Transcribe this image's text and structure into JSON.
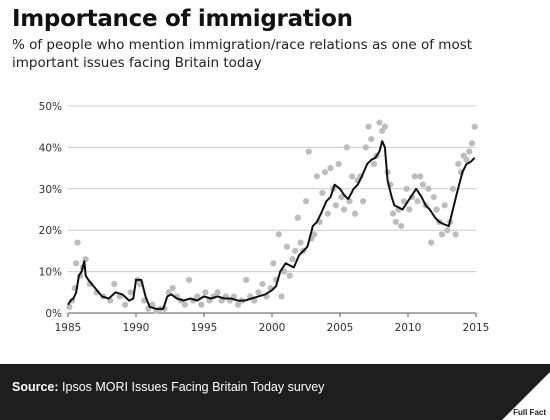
{
  "header": {
    "title": "Importance of immigration",
    "subtitle": "% of people who mention immigration/race relations as one of most important issues facing Britain today"
  },
  "footer": {
    "source_label": "Source:",
    "source_text": "Ipsos MORI Issues Facing Britain Today survey",
    "logo_text": "Full Fact"
  },
  "colors": {
    "line": "#111111",
    "points": "#bdbdbd",
    "grid": "#cccccc",
    "footer_bg": "#1e1e1e"
  },
  "chart_data": {
    "type": "line",
    "title": "Importance of immigration",
    "xlabel": "",
    "ylabel": "",
    "xlim": [
      1985,
      2015
    ],
    "ylim": [
      0,
      50
    ],
    "x_ticks": [
      1985,
      1990,
      1995,
      2000,
      2005,
      2010,
      2015
    ],
    "x_tick_labels": [
      "1985",
      "1990",
      "1995",
      "2000",
      "2005",
      "2010",
      "2015"
    ],
    "y_ticks": [
      0,
      10,
      20,
      30,
      40,
      50
    ],
    "y_tick_labels": [
      "0%",
      "10%",
      "20%",
      "30%",
      "40%",
      "50%"
    ],
    "grid": "horizontal",
    "legend": "none",
    "series": [
      {
        "kind": "line",
        "x": [
          1985.0,
          1985.2,
          1985.4,
          1985.6,
          1985.8,
          1986.0,
          1986.2,
          1986.3,
          1986.5,
          1987.0,
          1987.5,
          1988.0,
          1988.5,
          1989.0,
          1989.5,
          1989.8,
          1990.0,
          1990.4,
          1990.7,
          1991.0,
          1991.5,
          1992.0,
          1992.3,
          1992.6,
          1993.0,
          1993.5,
          1994.0,
          1994.5,
          1995.0,
          1995.5,
          1996.0,
          1996.5,
          1997.0,
          1997.5,
          1998.0,
          1998.5,
          1999.0,
          1999.5,
          2000.0,
          2000.3,
          2000.6,
          2001.0,
          2001.3,
          2001.6,
          2002.0,
          2002.3,
          2002.6,
          2003.0,
          2003.3,
          2003.6,
          2004.0,
          2004.3,
          2004.6,
          2005.0,
          2005.3,
          2005.6,
          2006.0,
          2006.3,
          2006.6,
          2007.0,
          2007.3,
          2007.6,
          2007.9,
          2008.1,
          2008.3,
          2008.5,
          2008.8,
          2009.0,
          2009.3,
          2009.6,
          2010.0,
          2010.3,
          2010.6,
          2011.0,
          2011.3,
          2011.6,
          2012.0,
          2012.3,
          2012.6,
          2013.0,
          2013.3,
          2013.6,
          2014.0,
          2014.3,
          2014.6,
          2014.9
        ],
        "y": [
          2,
          3,
          3.5,
          5,
          9,
          10,
          12.5,
          9,
          8,
          6,
          4,
          3.5,
          5,
          4.5,
          3,
          3.5,
          8,
          8,
          4,
          1.5,
          1,
          1,
          4,
          4.5,
          3.5,
          3,
          3.5,
          3,
          4,
          3.5,
          4,
          3.5,
          3.5,
          3,
          3,
          3.5,
          4,
          4.5,
          5.5,
          6.5,
          10,
          12,
          11.5,
          11,
          14,
          15,
          16,
          21,
          22,
          24,
          27,
          28,
          31,
          30,
          28.5,
          27.5,
          30,
          31,
          33,
          36,
          37,
          37.5,
          39,
          41.5,
          40,
          32,
          28,
          26,
          25.5,
          25,
          27,
          28.5,
          30,
          28,
          26,
          25,
          23,
          22,
          21.5,
          21,
          25,
          29,
          34,
          36,
          36.5,
          37.5
        ]
      },
      {
        "kind": "scatter",
        "x": [
          1985.1,
          1985.3,
          1985.5,
          1985.6,
          1985.7,
          1985.9,
          1986.1,
          1986.3,
          1986.6,
          1987.1,
          1987.6,
          1988.1,
          1988.4,
          1988.8,
          1989.2,
          1989.6,
          1990.1,
          1990.3,
          1990.6,
          1990.9,
          1991.2,
          1991.5,
          1991.8,
          1992.1,
          1992.4,
          1992.7,
          1993.0,
          1993.3,
          1993.6,
          1993.9,
          1994.2,
          1994.5,
          1994.8,
          1995.1,
          1995.4,
          1995.7,
          1996.0,
          1996.3,
          1996.6,
          1996.9,
          1997.2,
          1997.5,
          1997.8,
          1998.1,
          1998.4,
          1998.7,
          1999.0,
          1999.3,
          1999.6,
          1999.9,
          2000.1,
          2000.3,
          2000.5,
          2000.7,
          2000.9,
          2001.1,
          2001.3,
          2001.5,
          2001.7,
          2001.9,
          2002.1,
          2002.3,
          2002.5,
          2002.7,
          2002.9,
          2003.1,
          2003.3,
          2003.5,
          2003.7,
          2003.9,
          2004.1,
          2004.3,
          2004.5,
          2004.7,
          2004.9,
          2005.1,
          2005.3,
          2005.5,
          2005.7,
          2005.9,
          2006.1,
          2006.3,
          2006.5,
          2006.7,
          2006.9,
          2007.1,
          2007.3,
          2007.5,
          2007.7,
          2007.9,
          2008.1,
          2008.3,
          2008.5,
          2008.7,
          2008.9,
          2009.1,
          2009.3,
          2009.5,
          2009.7,
          2009.9,
          2010.1,
          2010.3,
          2010.5,
          2010.7,
          2010.9,
          2011.1,
          2011.3,
          2011.5,
          2011.7,
          2011.9,
          2012.1,
          2012.3,
          2012.5,
          2012.7,
          2012.9,
          2013.1,
          2013.3,
          2013.5,
          2013.7,
          2013.9,
          2014.1,
          2014.3,
          2014.5,
          2014.7,
          2014.9
        ],
        "y": [
          1.5,
          3,
          6,
          12,
          17,
          9,
          11,
          13,
          7,
          5,
          4,
          3,
          7,
          4,
          2,
          5,
          8,
          7,
          3,
          1,
          2,
          0.5,
          1,
          1,
          5,
          6,
          4,
          3,
          2,
          8,
          3,
          4,
          2,
          5,
          3,
          4,
          5,
          3,
          4,
          3,
          4,
          2,
          3,
          8,
          4,
          3,
          5,
          7,
          4,
          6,
          12,
          8,
          19,
          4,
          10,
          16,
          9,
          13,
          15,
          23,
          17,
          15,
          27,
          39,
          18,
          19,
          33,
          22,
          29,
          34,
          24,
          35,
          30,
          26,
          36,
          28,
          25,
          40,
          27,
          33,
          24,
          32,
          33,
          27,
          40,
          45,
          42,
          36,
          38,
          46,
          44,
          45,
          34,
          31,
          24,
          22,
          25,
          21,
          27,
          30,
          25,
          28,
          33,
          27,
          33,
          31,
          26,
          30,
          17,
          28,
          25,
          22,
          19,
          26,
          20,
          22,
          30,
          19,
          36,
          34,
          38,
          37,
          39,
          41,
          45
        ]
      }
    ]
  }
}
